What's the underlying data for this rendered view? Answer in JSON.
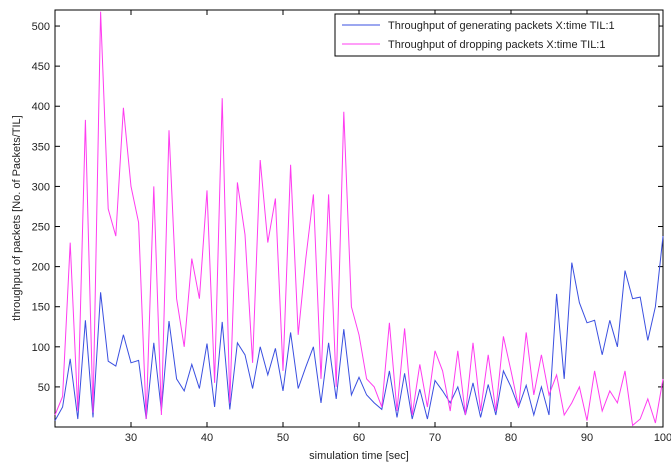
{
  "chart_data": {
    "type": "line",
    "title": "",
    "xlabel": "simulation time [sec]",
    "ylabel": "throughput of packets [No. of Packets/TIL]",
    "xlim": [
      20,
      100
    ],
    "ylim": [
      0,
      520
    ],
    "xticks": [
      30,
      40,
      50,
      60,
      70,
      80,
      90,
      100
    ],
    "yticks": [
      50,
      100,
      150,
      200,
      250,
      300,
      350,
      400,
      450,
      500
    ],
    "grid": false,
    "legend_position": "top-right",
    "x": [
      20,
      21,
      22,
      23,
      24,
      25,
      26,
      27,
      28,
      29,
      30,
      31,
      32,
      33,
      34,
      35,
      36,
      37,
      38,
      39,
      40,
      41,
      42,
      43,
      44,
      45,
      46,
      47,
      48,
      49,
      50,
      51,
      52,
      53,
      54,
      55,
      56,
      57,
      58,
      59,
      60,
      61,
      62,
      63,
      64,
      65,
      66,
      67,
      68,
      69,
      70,
      71,
      72,
      73,
      74,
      75,
      76,
      77,
      78,
      79,
      80,
      81,
      82,
      83,
      84,
      85,
      86,
      87,
      88,
      89,
      90,
      91,
      92,
      93,
      94,
      95,
      96,
      97,
      98,
      99,
      100
    ],
    "series": [
      {
        "name": "Throughput of generating packets X:time TIL:1",
        "color": "#3a4fe0",
        "values": [
          8,
          25,
          85,
          10,
          133,
          12,
          168,
          82,
          76,
          115,
          80,
          83,
          10,
          105,
          20,
          132,
          60,
          45,
          78,
          48,
          104,
          25,
          131,
          22,
          105,
          90,
          48,
          100,
          65,
          98,
          45,
          118,
          48,
          75,
          100,
          30,
          105,
          35,
          122,
          40,
          62,
          40,
          30,
          22,
          70,
          12,
          67,
          10,
          47,
          10,
          58,
          45,
          30,
          50,
          15,
          55,
          12,
          53,
          15,
          70,
          50,
          25,
          52,
          15,
          50,
          15,
          166,
          60,
          205,
          155,
          130,
          133,
          90,
          133,
          100,
          195,
          160,
          162,
          108,
          150,
          238
        ]
      },
      {
        "name": "Throughput of dropping packets X:time TIL:1",
        "color": "#ff3cf0",
        "values": [
          15,
          38,
          230,
          20,
          383,
          18,
          518,
          272,
          238,
          398,
          300,
          255,
          10,
          300,
          15,
          370,
          160,
          100,
          210,
          160,
          295,
          55,
          410,
          30,
          305,
          240,
          80,
          333,
          230,
          285,
          70,
          327,
          115,
          210,
          290,
          60,
          290,
          50,
          393,
          150,
          115,
          60,
          50,
          25,
          130,
          20,
          123,
          15,
          78,
          25,
          95,
          70,
          20,
          95,
          15,
          105,
          20,
          90,
          20,
          113,
          70,
          25,
          118,
          40,
          90,
          40,
          65,
          15,
          30,
          50,
          8,
          70,
          20,
          45,
          30,
          70,
          2,
          10,
          35,
          5,
          60
        ]
      }
    ]
  }
}
